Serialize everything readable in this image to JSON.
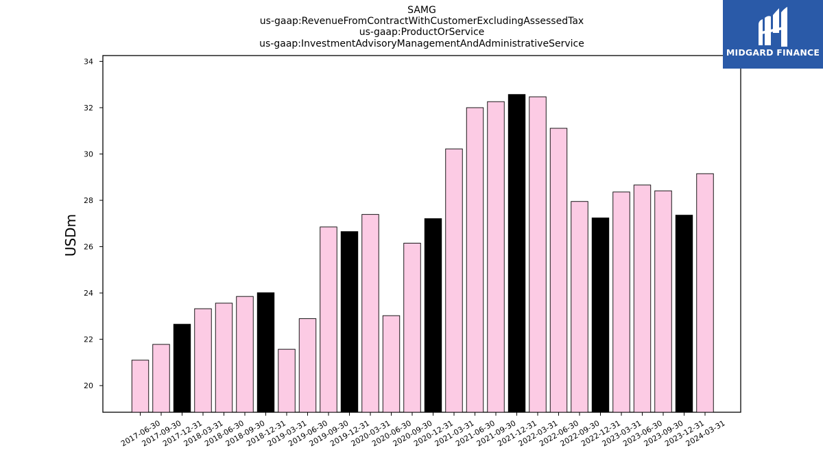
{
  "header": {
    "title_lines": [
      "SAMG",
      "us-gaap:RevenueFromContractWithCustomerExcludingAssessedTax",
      "us-gaap:ProductOrService",
      "us-gaap:InvestmentAdvisoryManagementAndAdministrativeService"
    ]
  },
  "logo": {
    "text": "MIDGARD FINANCE",
    "color": "#2a5aa8"
  },
  "chart_data": {
    "type": "bar",
    "ylabel": "USDm",
    "ylim": [
      18.85,
      34.25
    ],
    "yticks": [
      20,
      22,
      24,
      26,
      28,
      30,
      32,
      34
    ],
    "categories": [
      "2017-06-30",
      "2017-09-30",
      "2017-12-31",
      "2018-03-31",
      "2018-06-30",
      "2018-09-30",
      "2018-12-31",
      "2019-03-31",
      "2019-06-30",
      "2019-09-30",
      "2019-12-31",
      "2020-03-31",
      "2020-06-30",
      "2020-09-30",
      "2020-12-31",
      "2021-03-31",
      "2021-06-30",
      "2021-09-30",
      "2021-12-31",
      "2022-03-31",
      "2022-06-30",
      "2022-09-30",
      "2022-12-31",
      "2023-03-31",
      "2023-06-30",
      "2023-09-30",
      "2023-12-31",
      "2024-03-31"
    ],
    "values": [
      21.1,
      21.78,
      22.65,
      23.32,
      23.56,
      23.85,
      24.01,
      21.57,
      22.89,
      26.85,
      26.65,
      27.39,
      23.02,
      26.15,
      27.21,
      30.22,
      32.0,
      32.26,
      32.57,
      32.47,
      31.11,
      27.95,
      27.24,
      28.36,
      28.66,
      28.41,
      27.36,
      29.15
    ],
    "highlight": [
      false,
      false,
      true,
      false,
      false,
      false,
      true,
      false,
      false,
      false,
      true,
      false,
      false,
      false,
      true,
      false,
      false,
      false,
      true,
      false,
      false,
      false,
      true,
      false,
      false,
      false,
      true,
      false
    ],
    "colors": {
      "bar": "#fccbe4",
      "highlight": "#000000",
      "edge": "#000000"
    }
  }
}
